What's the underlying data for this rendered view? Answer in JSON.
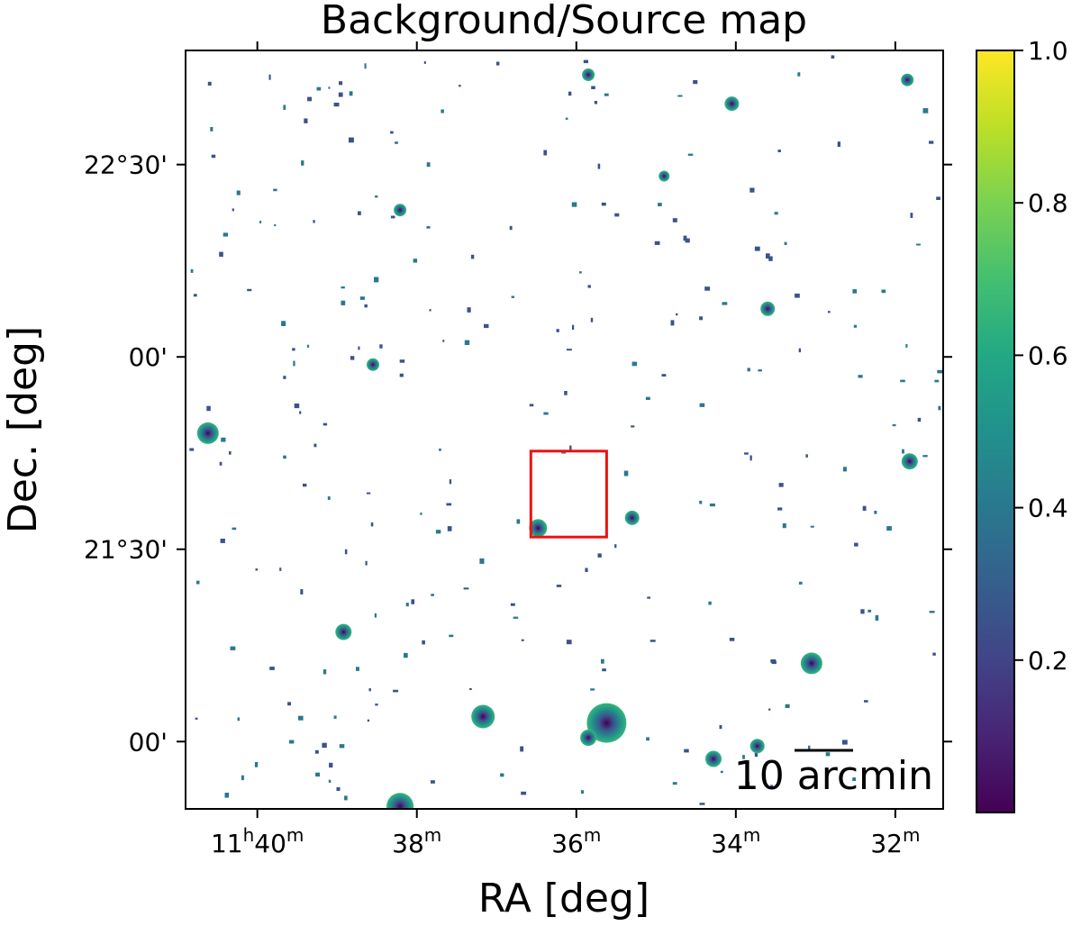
{
  "chart_data": {
    "type": "heatmap",
    "title": "Background/Source map",
    "xlabel": "RA [deg]",
    "ylabel": "Dec. [deg]",
    "x_ticks": [
      {
        "ra_min": 40,
        "label_h": "11",
        "label_m": "40"
      },
      {
        "ra_min": 38,
        "label_m": "38"
      },
      {
        "ra_min": 36,
        "label_m": "36"
      },
      {
        "ra_min": 34,
        "label_m": "34"
      },
      {
        "ra_min": 32,
        "label_m": "32"
      }
    ],
    "y_ticks": [
      {
        "dec_arcmin": 1350,
        "label": "22°30'"
      },
      {
        "dec_arcmin": 1320,
        "label": "00'"
      },
      {
        "dec_arcmin": 1290,
        "label": "21°30'"
      },
      {
        "dec_arcmin": 1260,
        "label": "00'"
      }
    ],
    "ra_range_min": [
      40.9,
      31.4
    ],
    "dec_range_arcmin": [
      1249.5,
      1367.8
    ],
    "colorbar": {
      "colormap": "viridis",
      "range": [
        0,
        1.0
      ],
      "ticks": [
        0.2,
        0.4,
        0.6,
        0.8,
        1.0
      ],
      "tick_labels": [
        "0.2",
        "0.4",
        "0.6",
        "0.8",
        "1.0"
      ]
    },
    "scalebar_label": "10 arcmin",
    "region_box": {
      "ra_min": [
        36.57,
        35.62
      ],
      "dec_arcmin": [
        1291.9,
        1305.3
      ],
      "color": "#ee1111"
    },
    "bright_sources": [
      {
        "ra": 40.62,
        "dec": 1308.1,
        "r": 12
      },
      {
        "ra": 38.92,
        "dec": 1277.1,
        "r": 9
      },
      {
        "ra": 38.21,
        "dec": 1249.9,
        "r": 15
      },
      {
        "ra": 37.17,
        "dec": 1263.9,
        "r": 13
      },
      {
        "ra": 35.62,
        "dec": 1262.9,
        "r": 22
      },
      {
        "ra": 35.85,
        "dec": 1260.6,
        "r": 9
      },
      {
        "ra": 36.48,
        "dec": 1293.3,
        "r": 10
      },
      {
        "ra": 35.3,
        "dec": 1294.9,
        "r": 8
      },
      {
        "ra": 34.28,
        "dec": 1257.3,
        "r": 9
      },
      {
        "ra": 33.73,
        "dec": 1259.3,
        "r": 8
      },
      {
        "ra": 33.05,
        "dec": 1272.2,
        "r": 12
      },
      {
        "ra": 31.82,
        "dec": 1303.7,
        "r": 9
      },
      {
        "ra": 34.05,
        "dec": 1359.5,
        "r": 8
      },
      {
        "ra": 31.85,
        "dec": 1363.2,
        "r": 7
      },
      {
        "ra": 33.6,
        "dec": 1327.5,
        "r": 8
      },
      {
        "ra": 38.55,
        "dec": 1318.8,
        "r": 7
      },
      {
        "ra": 38.21,
        "dec": 1342.9,
        "r": 7
      },
      {
        "ra": 35.85,
        "dec": 1364.0,
        "r": 7
      },
      {
        "ra": 34.9,
        "dec": 1348.2,
        "r": 6
      }
    ]
  }
}
